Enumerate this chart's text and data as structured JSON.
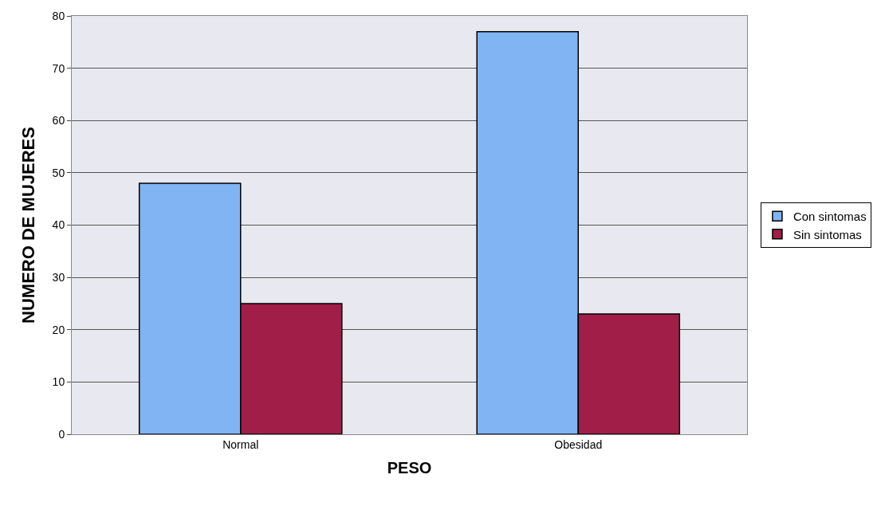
{
  "chart_data": {
    "type": "bar",
    "xlabel": "PESO",
    "ylabel": "NUMERO DE MUJERES",
    "categories": [
      "Normal",
      "Obesidad"
    ],
    "series": [
      {
        "name": "Con sintomas",
        "color": "#80b4f2",
        "values": [
          48,
          77
        ]
      },
      {
        "name": "Sin sintomas",
        "color": "#a01e48",
        "values": [
          25,
          23
        ]
      }
    ],
    "ylim": [
      0,
      80
    ],
    "yticks": [
      0,
      10,
      20,
      30,
      40,
      50,
      60,
      70,
      80
    ],
    "grid": "y",
    "legend": "right"
  }
}
